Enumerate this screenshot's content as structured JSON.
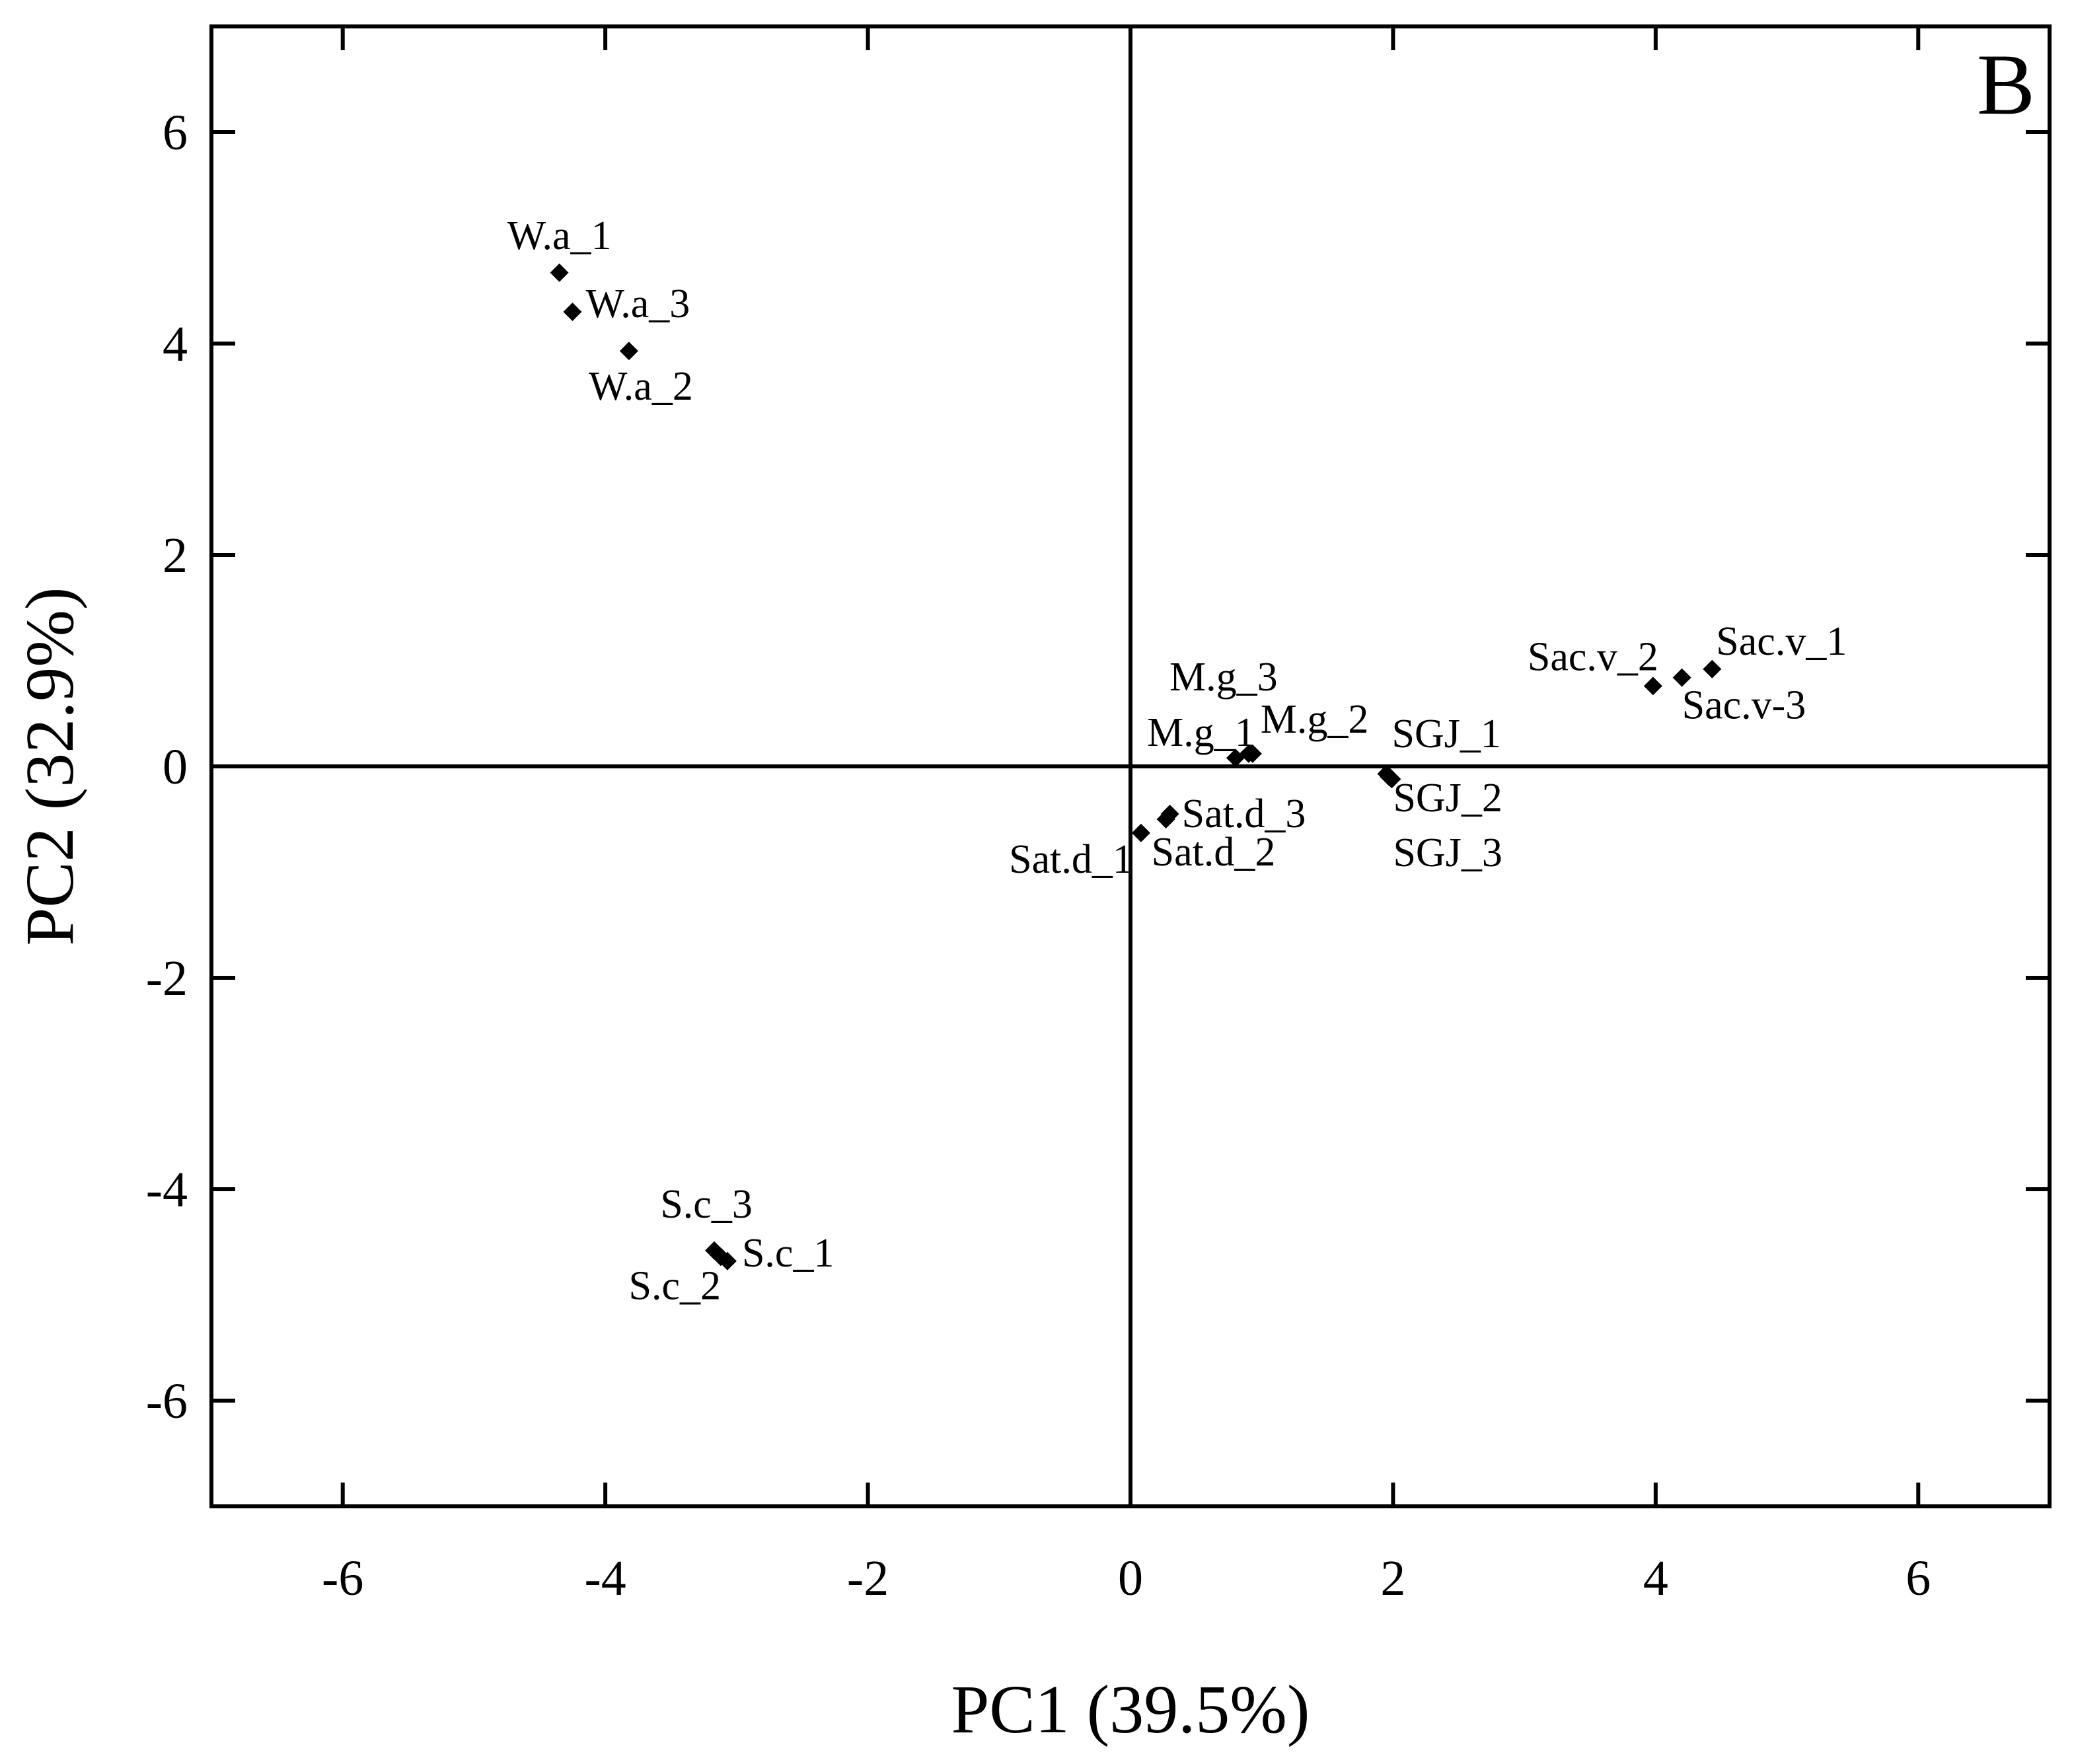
{
  "chart_data": {
    "type": "scatter",
    "panel_label": "B",
    "xlabel": "PC1 (39.5%)",
    "ylabel": "PC2 (32.9%)",
    "xlim": [
      -7,
      7
    ],
    "ylim": [
      -7,
      7
    ],
    "xticks": [
      -6,
      -4,
      -2,
      0,
      2,
      4,
      6
    ],
    "yticks": [
      -6,
      -4,
      -2,
      0,
      2,
      4,
      6
    ],
    "reference_lines": {
      "x": 0,
      "y": 0
    },
    "grid": false,
    "marker": "diamond",
    "marker_color": "#000000",
    "points": [
      {
        "label": "W.a_1",
        "x": -4.35,
        "y": 4.67
      },
      {
        "label": "W.a_3",
        "x": -4.25,
        "y": 4.3
      },
      {
        "label": "W.a_2",
        "x": -3.82,
        "y": 3.93
      },
      {
        "label": "M.g_3",
        "x": 0.9,
        "y": 0.12
      },
      {
        "label": "M.g_1",
        "x": 0.8,
        "y": 0.08
      },
      {
        "label": "M.g_2",
        "x": 0.93,
        "y": 0.12
      },
      {
        "label": "Sat.d_1",
        "x": 0.08,
        "y": -0.63
      },
      {
        "label": "Sat.d_2",
        "x": 0.27,
        "y": -0.5
      },
      {
        "label": "Sat.d_3",
        "x": 0.3,
        "y": -0.45
      },
      {
        "label": "SGJ_1",
        "x": 1.95,
        "y": -0.07
      },
      {
        "label": "SGJ_2",
        "x": 1.97,
        "y": -0.1
      },
      {
        "label": "SGJ_3",
        "x": 1.99,
        "y": -0.12
      },
      {
        "label": "Sac.v_2",
        "x": 3.98,
        "y": 0.76
      },
      {
        "label": "Sac.v-3",
        "x": 4.2,
        "y": 0.84
      },
      {
        "label": "Sac.v_1",
        "x": 4.43,
        "y": 0.92
      },
      {
        "label": "S.c_3",
        "x": -3.17,
        "y": -4.58
      },
      {
        "label": "S.c_1",
        "x": -3.07,
        "y": -4.68
      },
      {
        "label": "S.c_2",
        "x": -3.12,
        "y": -4.64
      }
    ]
  }
}
